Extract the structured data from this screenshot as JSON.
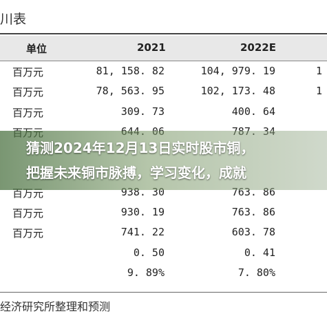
{
  "table": {
    "title": "川表",
    "headers": {
      "unit": "单位",
      "y2021": "2021",
      "y2022": "2022E"
    },
    "rows": [
      {
        "unit": "百万元",
        "v2021": "81, 158. 82",
        "v2022": "104, 979. 19",
        "v3": "1"
      },
      {
        "unit": "百万元",
        "v2021": "78, 563. 95",
        "v2022": "102, 173. 48",
        "v3": "1"
      },
      {
        "unit": "百万元",
        "v2021": "309. 73",
        "v2022": "400. 64",
        "v3": ""
      },
      {
        "unit": "百万元",
        "v2021": "644. 06",
        "v2022": "787. 34",
        "v3": ""
      },
      {
        "unit": "",
        "v2021": "",
        "v2022": "",
        "v3": ""
      },
      {
        "unit": "",
        "v2021": "",
        "v2022": "",
        "v3": ""
      },
      {
        "unit": "百万元",
        "v2021": "938. 30",
        "v2022": "763. 86",
        "v3": ""
      },
      {
        "unit": "百万元",
        "v2021": "930. 19",
        "v2022": "763. 86",
        "v3": ""
      },
      {
        "unit": "百万元",
        "v2021": "741. 22",
        "v2022": "603. 78",
        "v3": ""
      },
      {
        "unit": "",
        "v2021": "0. 50",
        "v2022": "0. 41",
        "v3": ""
      },
      {
        "unit": "",
        "v2021": "9. 89%",
        "v2022": "7. 80%",
        "v3": ""
      }
    ],
    "source": "经济研究所整理和预测"
  },
  "banner": {
    "line1": "猜测2024年12月13日实时股市铜，",
    "line2": "把握未来铜市脉搏，学习变化，成就"
  },
  "colors": {
    "banner_overlay": "#5a8a4a",
    "header_bg": "#e8e8e8"
  }
}
